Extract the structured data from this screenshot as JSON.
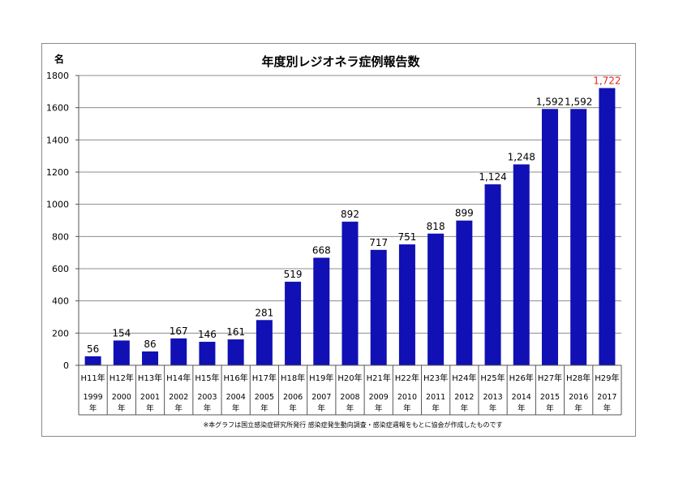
{
  "chart_data": {
    "type": "bar",
    "title": "年度別レジオネラ症例報告数",
    "ylabel": "名",
    "ylim": [
      0,
      1800
    ],
    "yticks": [
      0,
      200,
      400,
      600,
      800,
      1000,
      1200,
      1400,
      1600,
      1800
    ],
    "grid": true,
    "categories": [
      {
        "era": "H11年",
        "year": "1999",
        "suffix": "年"
      },
      {
        "era": "H12年",
        "year": "2000",
        "suffix": "年"
      },
      {
        "era": "H13年",
        "year": "2001",
        "suffix": "年"
      },
      {
        "era": "H14年",
        "year": "2002",
        "suffix": "年"
      },
      {
        "era": "H15年",
        "year": "2003",
        "suffix": "年"
      },
      {
        "era": "H16年",
        "year": "2004",
        "suffix": "年"
      },
      {
        "era": "H17年",
        "year": "2005",
        "suffix": "年"
      },
      {
        "era": "H18年",
        "year": "2006",
        "suffix": "年"
      },
      {
        "era": "H19年",
        "year": "2007",
        "suffix": "年"
      },
      {
        "era": "H20年",
        "year": "2008",
        "suffix": "年"
      },
      {
        "era": "H21年",
        "year": "2009",
        "suffix": "年"
      },
      {
        "era": "H22年",
        "year": "2010",
        "suffix": "年"
      },
      {
        "era": "H23年",
        "year": "2011",
        "suffix": "年"
      },
      {
        "era": "H24年",
        "year": "2012",
        "suffix": "年"
      },
      {
        "era": "H25年",
        "year": "2013",
        "suffix": "年"
      },
      {
        "era": "H26年",
        "year": "2014",
        "suffix": "年"
      },
      {
        "era": "H27年",
        "year": "2015",
        "suffix": "年"
      },
      {
        "era": "H28年",
        "year": "2016",
        "suffix": "年"
      },
      {
        "era": "H29年",
        "year": "2017",
        "suffix": "年"
      }
    ],
    "values": [
      56,
      154,
      86,
      167,
      146,
      161,
      281,
      519,
      668,
      892,
      717,
      751,
      818,
      899,
      1124,
      1248,
      1592,
      1592,
      1722
    ],
    "value_labels": [
      "56",
      "154",
      "86",
      "167",
      "146",
      "161",
      "281",
      "519",
      "668",
      "892",
      "717",
      "751",
      "818",
      "899",
      "1,124",
      "1,248",
      "1,592",
      "1,592",
      "1,722"
    ],
    "bar_color": "#1010b4",
    "label_color": "#000000",
    "highlight_label_color": "#e8261d",
    "highlight_index": 18,
    "footnote": "※本グラフは国立感染症研究所発行 感染症発生動向調査・感染症週報をもとに協会が作成したものです"
  }
}
